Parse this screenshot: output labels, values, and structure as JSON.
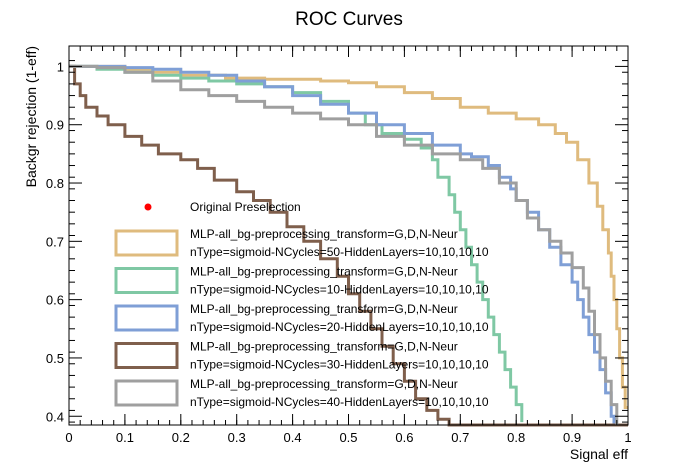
{
  "chart_data": {
    "type": "line",
    "title": "ROC Curves",
    "xlabel": "Signal eff",
    "ylabel": "Backgr rejection (1-eff)",
    "xlim": [
      0,
      1
    ],
    "ylim": [
      0.385,
      1.035
    ],
    "xticks": [
      0,
      0.1,
      0.2,
      0.3,
      0.4,
      0.5,
      0.6,
      0.7,
      0.8,
      0.9,
      1
    ],
    "xtick_labels": [
      "0",
      "0.1",
      "0.2",
      "0.3",
      "0.4",
      "0.5",
      "0.6",
      "0.7",
      "0.8",
      "0.9",
      "1"
    ],
    "yticks": [
      0.4,
      0.5,
      0.6,
      0.7,
      0.8,
      0.9,
      1
    ],
    "ytick_labels": [
      "0.4",
      "0.5",
      "0.6",
      "0.7",
      "0.8",
      "0.9",
      "1"
    ],
    "grid": false,
    "legend_position": "lower-left",
    "marker": {
      "label": "Original Preselection",
      "color": "#ff0000",
      "point": null
    },
    "series": [
      {
        "name_line1": "MLP-all_bg-preprocessing_transform=G,D,N-Neur",
        "name_line2": "nType=sigmoid-NCycles=50-HiddenLayers=10,10,10,10",
        "color": "#dfbb7e",
        "points": [
          [
            0,
            1.0
          ],
          [
            0.05,
            1.0
          ],
          [
            0.1,
            0.995
          ],
          [
            0.15,
            0.99
          ],
          [
            0.2,
            0.985
          ],
          [
            0.28,
            0.98
          ],
          [
            0.35,
            0.978
          ],
          [
            0.45,
            0.975
          ],
          [
            0.5,
            0.972
          ],
          [
            0.55,
            0.965
          ],
          [
            0.6,
            0.955
          ],
          [
            0.65,
            0.945
          ],
          [
            0.7,
            0.93
          ],
          [
            0.75,
            0.92
          ],
          [
            0.8,
            0.91
          ],
          [
            0.84,
            0.9
          ],
          [
            0.87,
            0.885
          ],
          [
            0.89,
            0.87
          ],
          [
            0.91,
            0.84
          ],
          [
            0.93,
            0.8
          ],
          [
            0.945,
            0.76
          ],
          [
            0.955,
            0.72
          ],
          [
            0.965,
            0.68
          ],
          [
            0.97,
            0.64
          ],
          [
            0.975,
            0.6
          ],
          [
            0.98,
            0.55
          ],
          [
            0.985,
            0.5
          ],
          [
            0.99,
            0.45
          ],
          [
            0.995,
            0.415
          ],
          [
            1.0,
            0.415
          ]
        ]
      },
      {
        "name_line1": "MLP-all_bg-preprocessing_transform=G,D,N-Neur",
        "name_line2": "nType=sigmoid-NCycles=10-HiddenLayers=10,10,10,10",
        "color": "#7fc8a4",
        "points": [
          [
            0,
            1.0
          ],
          [
            0.05,
            0.995
          ],
          [
            0.1,
            0.99
          ],
          [
            0.15,
            0.985
          ],
          [
            0.2,
            0.98
          ],
          [
            0.25,
            0.975
          ],
          [
            0.3,
            0.97
          ],
          [
            0.35,
            0.965
          ],
          [
            0.4,
            0.955
          ],
          [
            0.45,
            0.94
          ],
          [
            0.5,
            0.92
          ],
          [
            0.53,
            0.9
          ],
          [
            0.56,
            0.885
          ],
          [
            0.6,
            0.875
          ],
          [
            0.63,
            0.86
          ],
          [
            0.65,
            0.84
          ],
          [
            0.66,
            0.81
          ],
          [
            0.68,
            0.78
          ],
          [
            0.69,
            0.75
          ],
          [
            0.7,
            0.72
          ],
          [
            0.71,
            0.69
          ],
          [
            0.72,
            0.66
          ],
          [
            0.73,
            0.63
          ],
          [
            0.74,
            0.6
          ],
          [
            0.75,
            0.57
          ],
          [
            0.76,
            0.54
          ],
          [
            0.77,
            0.51
          ],
          [
            0.78,
            0.48
          ],
          [
            0.79,
            0.45
          ],
          [
            0.8,
            0.42
          ],
          [
            0.81,
            0.39
          ]
        ]
      },
      {
        "name_line1": "MLP-all_bg-preprocessing_transform=G,D,N-Neur",
        "name_line2": "nType=sigmoid-NCycles=20-HiddenLayers=10,10,10,10",
        "color": "#7f9fd6",
        "points": [
          [
            0,
            1.0
          ],
          [
            0.05,
            1.0
          ],
          [
            0.1,
            0.998
          ],
          [
            0.15,
            0.995
          ],
          [
            0.2,
            0.99
          ],
          [
            0.25,
            0.985
          ],
          [
            0.3,
            0.975
          ],
          [
            0.35,
            0.965
          ],
          [
            0.4,
            0.95
          ],
          [
            0.45,
            0.935
          ],
          [
            0.5,
            0.92
          ],
          [
            0.55,
            0.9
          ],
          [
            0.6,
            0.885
          ],
          [
            0.65,
            0.865
          ],
          [
            0.7,
            0.85
          ],
          [
            0.72,
            0.845
          ],
          [
            0.75,
            0.83
          ],
          [
            0.77,
            0.81
          ],
          [
            0.79,
            0.79
          ],
          [
            0.8,
            0.77
          ],
          [
            0.82,
            0.75
          ],
          [
            0.84,
            0.72
          ],
          [
            0.86,
            0.69
          ],
          [
            0.88,
            0.66
          ],
          [
            0.9,
            0.63
          ],
          [
            0.91,
            0.6
          ],
          [
            0.92,
            0.57
          ],
          [
            0.93,
            0.54
          ],
          [
            0.94,
            0.51
          ],
          [
            0.95,
            0.48
          ],
          [
            0.96,
            0.44
          ],
          [
            0.97,
            0.4
          ],
          [
            0.975,
            0.385
          ]
        ]
      },
      {
        "name_line1": "MLP-all_bg-preprocessing_transform=G,D,N-Neur",
        "name_line2": "nType=sigmoid-NCycles=30-HiddenLayers=10,10,10,10",
        "color": "#7f5f4c",
        "points": [
          [
            0,
            1.0
          ],
          [
            0.01,
            0.97
          ],
          [
            0.02,
            0.95
          ],
          [
            0.03,
            0.93
          ],
          [
            0.05,
            0.915
          ],
          [
            0.07,
            0.9
          ],
          [
            0.1,
            0.88
          ],
          [
            0.13,
            0.865
          ],
          [
            0.16,
            0.85
          ],
          [
            0.2,
            0.84
          ],
          [
            0.23,
            0.825
          ],
          [
            0.26,
            0.805
          ],
          [
            0.3,
            0.785
          ],
          [
            0.33,
            0.77
          ],
          [
            0.36,
            0.75
          ],
          [
            0.39,
            0.725
          ],
          [
            0.42,
            0.7
          ],
          [
            0.45,
            0.67
          ],
          [
            0.48,
            0.64
          ],
          [
            0.5,
            0.61
          ],
          [
            0.52,
            0.58
          ],
          [
            0.54,
            0.55
          ],
          [
            0.56,
            0.52
          ],
          [
            0.58,
            0.49
          ],
          [
            0.6,
            0.46
          ],
          [
            0.62,
            0.43
          ],
          [
            0.64,
            0.41
          ],
          [
            0.66,
            0.395
          ],
          [
            0.68,
            0.385
          ],
          [
            1.0,
            0.385
          ]
        ]
      },
      {
        "name_line1": "MLP-all_bg-preprocessing_transform=G,D,N-Neur",
        "name_line2": "nType=sigmoid-NCycles=40-HiddenLayers=10,10,10,10",
        "color": "#9f9f9f",
        "points": [
          [
            0,
            1.0
          ],
          [
            0.05,
            0.998
          ],
          [
            0.1,
            0.99
          ],
          [
            0.15,
            0.975
          ],
          [
            0.2,
            0.96
          ],
          [
            0.25,
            0.95
          ],
          [
            0.3,
            0.94
          ],
          [
            0.35,
            0.93
          ],
          [
            0.4,
            0.92
          ],
          [
            0.45,
            0.91
          ],
          [
            0.5,
            0.9
          ],
          [
            0.55,
            0.88
          ],
          [
            0.6,
            0.865
          ],
          [
            0.65,
            0.85
          ],
          [
            0.7,
            0.84
          ],
          [
            0.74,
            0.825
          ],
          [
            0.77,
            0.8
          ],
          [
            0.8,
            0.77
          ],
          [
            0.82,
            0.74
          ],
          [
            0.84,
            0.72
          ],
          [
            0.86,
            0.7
          ],
          [
            0.88,
            0.68
          ],
          [
            0.9,
            0.655
          ],
          [
            0.92,
            0.62
          ],
          [
            0.93,
            0.58
          ],
          [
            0.94,
            0.54
          ],
          [
            0.95,
            0.5
          ],
          [
            0.96,
            0.46
          ],
          [
            0.97,
            0.42
          ],
          [
            0.98,
            0.385
          ]
        ]
      }
    ]
  }
}
